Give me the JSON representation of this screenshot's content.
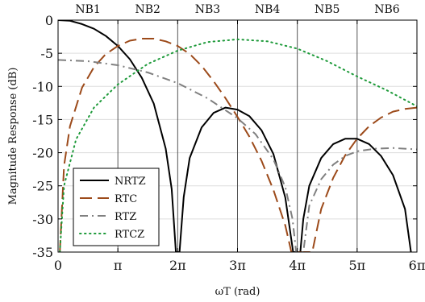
{
  "chart_data": {
    "type": "line",
    "title": "",
    "xlabel": "ωT (rad)",
    "ylabel": "Magnitude Response (dB)",
    "xlim": [
      0,
      6
    ],
    "x_unit": "π",
    "ylim": [
      -35,
      0
    ],
    "grid": true,
    "legend_position": "bottom-left",
    "x_ticks": [
      {
        "value": 0,
        "label": "0"
      },
      {
        "value": 1,
        "label": "π"
      },
      {
        "value": 2,
        "label": "2π"
      },
      {
        "value": 3,
        "label": "3π"
      },
      {
        "value": 4,
        "label": "4π"
      },
      {
        "value": 5,
        "label": "5π"
      },
      {
        "value": 6,
        "label": "6π"
      }
    ],
    "y_ticks": [
      {
        "value": 0,
        "label": "0"
      },
      {
        "value": -5,
        "label": "-5"
      },
      {
        "value": -10,
        "label": "-10"
      },
      {
        "value": -15,
        "label": "-15"
      },
      {
        "value": -20,
        "label": "-20"
      },
      {
        "value": -25,
        "label": "-25"
      },
      {
        "value": -30,
        "label": "-30"
      },
      {
        "value": -35,
        "label": "-35"
      }
    ],
    "bands": [
      {
        "label": "NB1",
        "from": 0,
        "to": 1
      },
      {
        "label": "NB2",
        "from": 1,
        "to": 2
      },
      {
        "label": "NB3",
        "from": 2,
        "to": 3
      },
      {
        "label": "NB4",
        "from": 3,
        "to": 4
      },
      {
        "label": "NB5",
        "from": 4,
        "to": 5
      },
      {
        "label": "NB6",
        "from": 5,
        "to": 6
      }
    ],
    "series": [
      {
        "name": "NRTZ",
        "color": "#000000",
        "dash": "solid",
        "points": [
          [
            0,
            0
          ],
          [
            0.2,
            -0.1
          ],
          [
            0.4,
            -0.6
          ],
          [
            0.6,
            -1.3
          ],
          [
            0.8,
            -2.4
          ],
          [
            1.0,
            -3.9
          ],
          [
            1.2,
            -5.9
          ],
          [
            1.4,
            -8.7
          ],
          [
            1.6,
            -12.6
          ],
          [
            1.8,
            -19.4
          ],
          [
            1.9,
            -25.5
          ],
          [
            1.97,
            -35
          ],
          [
            2.03,
            -35
          ],
          [
            2.1,
            -26.7
          ],
          [
            2.2,
            -20.8
          ],
          [
            2.4,
            -16.2
          ],
          [
            2.6,
            -14.0
          ],
          [
            2.8,
            -13.2
          ],
          [
            3.0,
            -13.5
          ],
          [
            3.2,
            -14.5
          ],
          [
            3.4,
            -16.6
          ],
          [
            3.6,
            -20.2
          ],
          [
            3.8,
            -26.8
          ],
          [
            3.93,
            -35
          ],
          [
            4.05,
            -35
          ],
          [
            4.1,
            -30.0
          ],
          [
            4.2,
            -25.0
          ],
          [
            4.4,
            -20.8
          ],
          [
            4.6,
            -18.7
          ],
          [
            4.8,
            -17.9
          ],
          [
            5.0,
            -17.9
          ],
          [
            5.2,
            -18.7
          ],
          [
            5.4,
            -20.5
          ],
          [
            5.6,
            -23.4
          ],
          [
            5.8,
            -28.5
          ],
          [
            5.9,
            -35
          ]
        ]
      },
      {
        "name": "RTC",
        "color": "#9c4a1a",
        "dash": "long-dash",
        "points": [
          [
            0.03,
            -35
          ],
          [
            0.1,
            -22.0
          ],
          [
            0.2,
            -16.0
          ],
          [
            0.4,
            -10.2
          ],
          [
            0.6,
            -7.1
          ],
          [
            0.8,
            -5.1
          ],
          [
            1.0,
            -3.9
          ],
          [
            1.2,
            -3.1
          ],
          [
            1.4,
            -2.8
          ],
          [
            1.6,
            -2.8
          ],
          [
            1.8,
            -3.2
          ],
          [
            2.0,
            -3.9
          ],
          [
            2.2,
            -5.1
          ],
          [
            2.4,
            -6.9
          ],
          [
            2.6,
            -9.2
          ],
          [
            2.8,
            -11.8
          ],
          [
            3.0,
            -14.6
          ],
          [
            3.2,
            -17.6
          ],
          [
            3.4,
            -21.2
          ],
          [
            3.6,
            -25.6
          ],
          [
            3.8,
            -31.0
          ],
          [
            3.9,
            -35
          ],
          [
            4.25,
            -35
          ],
          [
            4.4,
            -28.5
          ],
          [
            4.6,
            -23.8
          ],
          [
            4.8,
            -20.4
          ],
          [
            5.0,
            -17.9
          ],
          [
            5.2,
            -16.0
          ],
          [
            5.4,
            -14.7
          ],
          [
            5.6,
            -13.8
          ],
          [
            5.8,
            -13.4
          ],
          [
            6.0,
            -13.2
          ]
        ]
      },
      {
        "name": "RTZ",
        "color": "#808080",
        "dash": "dash-dot",
        "points": [
          [
            0,
            -6.0
          ],
          [
            0.5,
            -6.2
          ],
          [
            1.0,
            -6.8
          ],
          [
            1.5,
            -7.9
          ],
          [
            2.0,
            -9.5
          ],
          [
            2.5,
            -11.8
          ],
          [
            3.0,
            -14.8
          ],
          [
            3.3,
            -17.2
          ],
          [
            3.6,
            -21.0
          ],
          [
            3.8,
            -25.2
          ],
          [
            3.92,
            -30.0
          ],
          [
            3.98,
            -35
          ],
          [
            4.1,
            -35
          ],
          [
            4.2,
            -28.0
          ],
          [
            4.4,
            -24.0
          ],
          [
            4.6,
            -21.8
          ],
          [
            4.8,
            -20.5
          ],
          [
            5.0,
            -19.8
          ],
          [
            5.3,
            -19.4
          ],
          [
            5.6,
            -19.3
          ],
          [
            6.0,
            -19.5
          ]
        ]
      },
      {
        "name": "RTCZ",
        "color": "#1e9a3a",
        "dash": "dotted",
        "points": [
          [
            0.03,
            -35
          ],
          [
            0.1,
            -25.0
          ],
          [
            0.3,
            -18.0
          ],
          [
            0.6,
            -13.2
          ],
          [
            1.0,
            -9.7
          ],
          [
            1.5,
            -6.6
          ],
          [
            2.0,
            -4.6
          ],
          [
            2.5,
            -3.3
          ],
          [
            3.0,
            -2.9
          ],
          [
            3.5,
            -3.2
          ],
          [
            4.0,
            -4.3
          ],
          [
            4.5,
            -6.2
          ],
          [
            5.0,
            -8.5
          ],
          [
            5.5,
            -10.6
          ],
          [
            6.0,
            -13.0
          ]
        ]
      }
    ]
  }
}
